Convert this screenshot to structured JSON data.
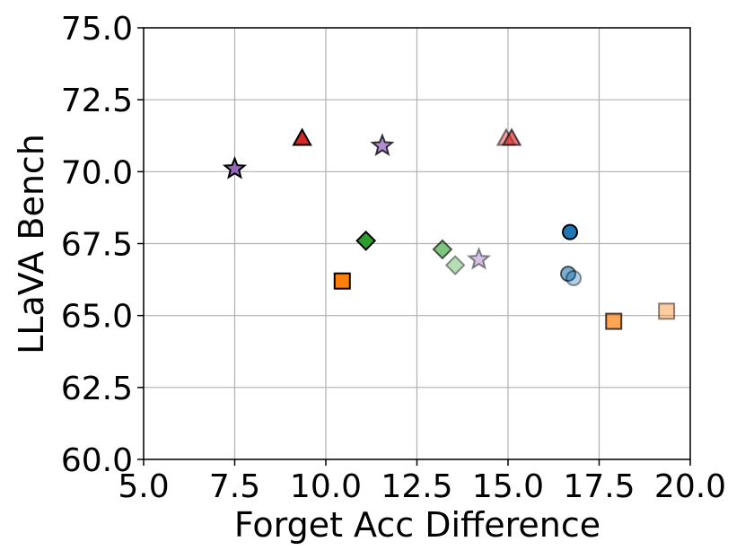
{
  "chart_data": {
    "type": "scatter",
    "title": "",
    "xlabel": "Forget Acc Difference",
    "ylabel": "LLaVA Bench",
    "xlim": [
      5.0,
      20.0
    ],
    "ylim": [
      60.0,
      75.0
    ],
    "xticks": [
      "5.0",
      "7.5",
      "10.0",
      "12.5",
      "15.0",
      "17.5",
      "20.0"
    ],
    "yticks": [
      "60.0",
      "62.5",
      "65.0",
      "67.5",
      "70.0",
      "72.5",
      "75.0"
    ],
    "grid": true,
    "legend": "none",
    "points": [
      {
        "x": 7.5,
        "y": 70.1,
        "marker": "star",
        "color": "#9467bd",
        "opacity": 1.0
      },
      {
        "x": 11.55,
        "y": 70.9,
        "marker": "star",
        "color": "#9467bd",
        "opacity": 0.75
      },
      {
        "x": 14.2,
        "y": 66.95,
        "marker": "star",
        "color": "#9467bd",
        "opacity": 0.4
      },
      {
        "x": 9.35,
        "y": 71.15,
        "marker": "triangle",
        "color": "#d62728",
        "opacity": 1.0
      },
      {
        "x": 14.95,
        "y": 71.15,
        "marker": "triangle",
        "color": "#d62728",
        "opacity": 0.45
      },
      {
        "x": 15.1,
        "y": 71.15,
        "marker": "triangle",
        "color": "#d62728",
        "opacity": 0.65
      },
      {
        "x": 11.1,
        "y": 67.6,
        "marker": "diamond",
        "color": "#2ca02c",
        "opacity": 1.0
      },
      {
        "x": 13.2,
        "y": 67.3,
        "marker": "diamond",
        "color": "#2ca02c",
        "opacity": 0.6
      },
      {
        "x": 13.55,
        "y": 66.75,
        "marker": "diamond",
        "color": "#2ca02c",
        "opacity": 0.35
      },
      {
        "x": 10.45,
        "y": 66.2,
        "marker": "square",
        "color": "#ff7f0e",
        "opacity": 1.0
      },
      {
        "x": 17.9,
        "y": 64.8,
        "marker": "square",
        "color": "#ff7f0e",
        "opacity": 0.7
      },
      {
        "x": 19.35,
        "y": 65.15,
        "marker": "square",
        "color": "#ff7f0e",
        "opacity": 0.4
      },
      {
        "x": 16.7,
        "y": 67.9,
        "marker": "circle",
        "color": "#1f77b4",
        "opacity": 1.0
      },
      {
        "x": 16.65,
        "y": 66.45,
        "marker": "circle",
        "color": "#1f77b4",
        "opacity": 0.6
      },
      {
        "x": 16.8,
        "y": 66.3,
        "marker": "circle",
        "color": "#1f77b4",
        "opacity": 0.35
      }
    ]
  }
}
